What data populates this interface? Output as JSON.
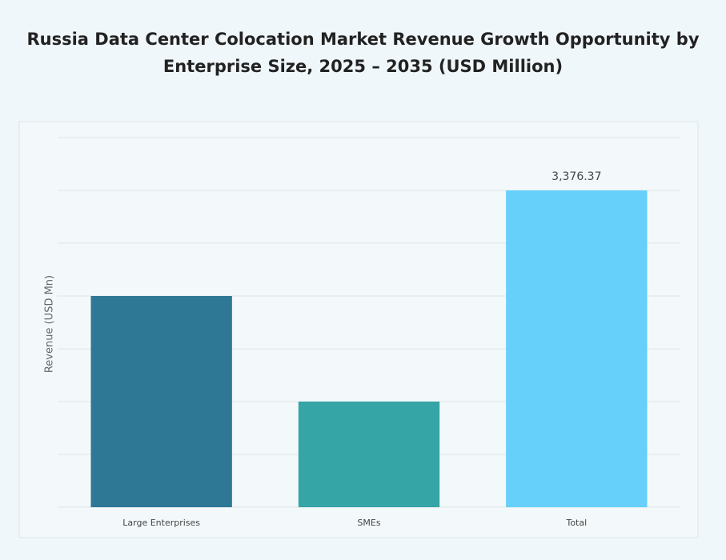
{
  "chart_data": {
    "type": "bar",
    "title": "Russia Data Center Colocation Market Revenue Growth Opportunity by Enterprise Size, 2025 – 2035 (USD Million)",
    "y_label": "Revenue (USD Mn)",
    "categories": [
      "Large Enterprises",
      "SMEs",
      "Total"
    ],
    "values": [
      2250.91,
      1125.46,
      3376.37
    ],
    "value_labels": [
      null,
      null,
      "3,376.37"
    ],
    "colors": [
      "#2e7795",
      "#35a5a6",
      "#66d0fb"
    ],
    "ylim": [
      0,
      3939.1
    ],
    "yticks": [
      0,
      562.73,
      1125.46,
      1688.19,
      2250.91,
      2813.64,
      3376.37,
      3939.1
    ],
    "show_ytick_labels": false,
    "grid": true
  }
}
